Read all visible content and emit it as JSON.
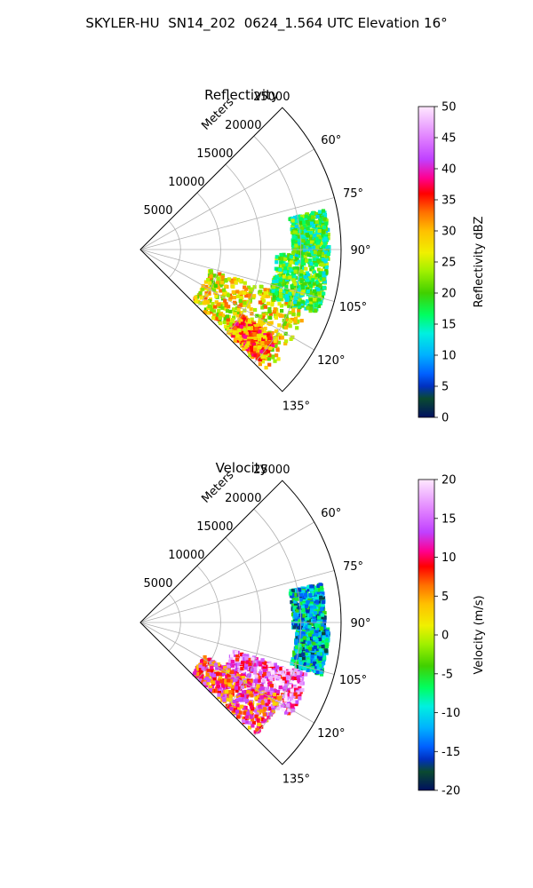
{
  "figure": {
    "suptitle": "SKYLER-HU  SN14_202  0624_1.564 UTC Elevation 16°"
  },
  "chart_data": [
    {
      "type": "polar-sector-heatmap",
      "title": "Reflectivity",
      "radial_label": "Meters",
      "r_ticks": [
        5000,
        10000,
        15000,
        20000,
        25000
      ],
      "rlim": [
        0,
        25000
      ],
      "theta_ticks": [
        "60°",
        "75°",
        "90°",
        "105°",
        "120°",
        "135°"
      ],
      "theta_range_deg": [
        45,
        135
      ],
      "grid": true,
      "colorbar": {
        "label": "Reflectivity dBZ",
        "ticks": [
          0,
          5,
          10,
          15,
          20,
          25,
          30,
          35,
          40,
          45,
          50
        ],
        "range": [
          0,
          50
        ]
      },
      "echo_regions": [
        {
          "az": [
            107,
            134
          ],
          "r": [
            9000,
            22000
          ],
          "level": 27
        },
        {
          "az": [
            92,
            110
          ],
          "r": [
            17000,
            23500
          ],
          "level": 19
        },
        {
          "az": [
            78,
            92
          ],
          "r": [
            19000,
            23500
          ],
          "level": 18
        },
        {
          "az": [
            123,
            133
          ],
          "r": [
            15000,
            20500
          ],
          "level": 32
        }
      ]
    },
    {
      "type": "polar-sector-heatmap",
      "title": "Velocity",
      "radial_label": "Meters",
      "r_ticks": [
        5000,
        10000,
        15000,
        20000,
        25000
      ],
      "rlim": [
        0,
        25000
      ],
      "theta_ticks": [
        "60°",
        "75°",
        "90°",
        "105°",
        "120°",
        "135°"
      ],
      "theta_range_deg": [
        45,
        135
      ],
      "grid": true,
      "colorbar": {
        "label": "Velocity (m/s)",
        "ticks": [
          -20,
          -15,
          -10,
          -5,
          0,
          5,
          10,
          15,
          20
        ],
        "range": [
          -20,
          20
        ]
      },
      "echo_regions": [
        {
          "az": [
            107,
            122
          ],
          "r": [
            12000,
            22000
          ],
          "level": 14
        },
        {
          "az": [
            118,
            134
          ],
          "r": [
            9000,
            20000
          ],
          "level": 9
        },
        {
          "az": [
            92,
            106
          ],
          "r": [
            19500,
            23500
          ],
          "level": -11
        },
        {
          "az": [
            78,
            92
          ],
          "r": [
            19000,
            23000
          ],
          "level": -11
        }
      ]
    }
  ]
}
